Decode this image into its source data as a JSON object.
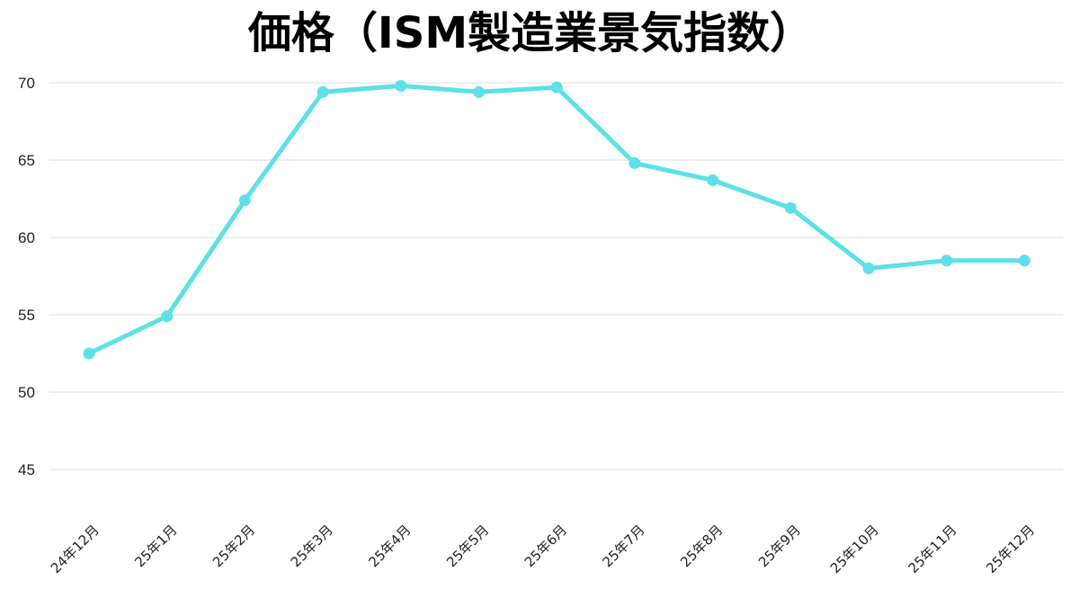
{
  "chart_data": {
    "type": "line",
    "title": "価格（ISM製造業景気指数）",
    "xlabel": "",
    "ylabel": "",
    "categories": [
      "24年12月",
      "25年1月",
      "25年2月",
      "25年3月",
      "25年4月",
      "25年5月",
      "25年6月",
      "25年7月",
      "25年8月",
      "25年9月",
      "25年10月",
      "25年11月",
      "25年12月"
    ],
    "series": [
      {
        "values": [
          52.5,
          54.9,
          62.4,
          69.4,
          69.8,
          69.4,
          69.7,
          64.8,
          63.7,
          61.9,
          58.0,
          58.5,
          58.5
        ]
      }
    ],
    "yticks": [
      45,
      50,
      55,
      60,
      65,
      70
    ],
    "ylim": [
      43,
      72
    ],
    "grid": true,
    "legend": "none",
    "colors": {
      "line": "#5ce1e6",
      "grid": "#dcdcdc"
    }
  }
}
